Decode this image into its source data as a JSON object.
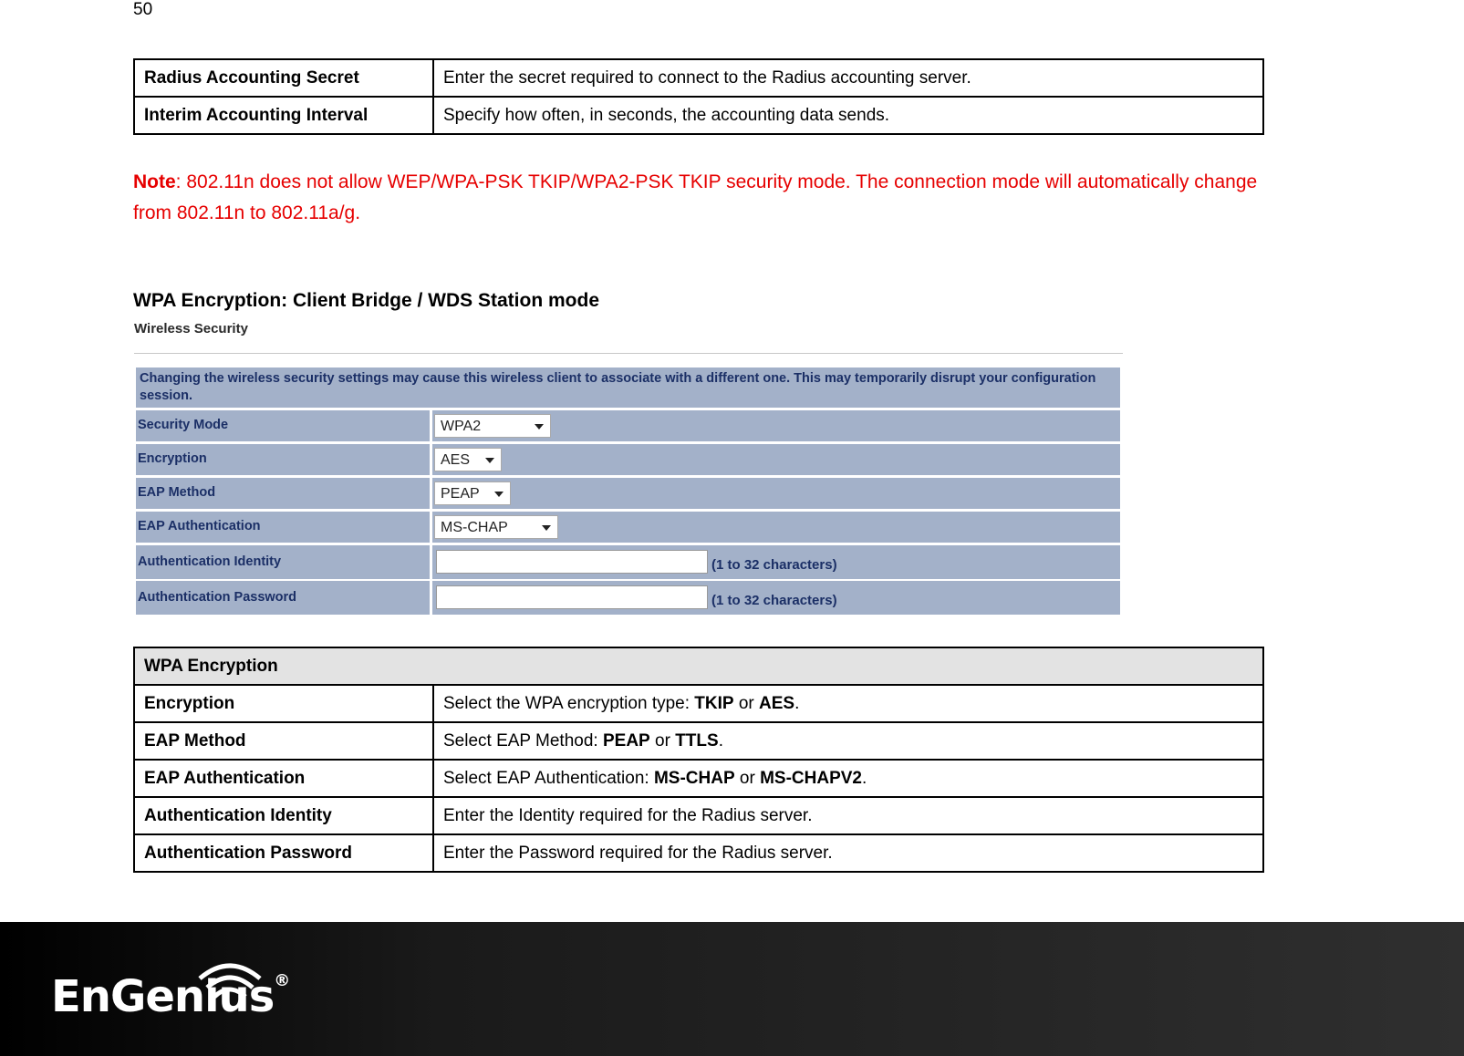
{
  "page_number": "50",
  "top_table": {
    "rows": [
      [
        "Radius Accounting Secret",
        "Enter the secret required to connect to the Radius accounting server."
      ],
      [
        "Interim Accounting Interval",
        "Specify how often, in seconds, the accounting data sends."
      ]
    ]
  },
  "note": {
    "label": "Note",
    "text": ":  802.11n does not allow WEP/WPA-PSK TKIP/WPA2-PSK TKIP security mode. The connection mode will automatically change from 802.11n to 802.11a/g."
  },
  "section_title": "WPA Encryption: Client Bridge / WDS Station mode",
  "screenshot": {
    "title": "Wireless Security",
    "warning": "Changing the wireless security settings may cause this wireless client to associate with a different one. This may temporarily disrupt your configuration session.",
    "rows": [
      {
        "label": "Security Mode",
        "value": "WPA2"
      },
      {
        "label": "Encryption",
        "value": "AES"
      },
      {
        "label": "EAP Method",
        "value": "PEAP"
      },
      {
        "label": "EAP Authentication",
        "value": "MS-CHAP"
      },
      {
        "label": "Authentication Identity",
        "hint": "(1 to 32 characters)"
      },
      {
        "label": "Authentication Password",
        "hint": "(1 to 32 characters)"
      }
    ]
  },
  "wpa_table": {
    "header": "WPA Encryption",
    "rows": [
      {
        "label": "Encryption",
        "description": [
          "Select the WPA encryption type: ",
          "TKIP",
          " or ",
          "AES",
          "."
        ]
      },
      {
        "label": "EAP Method",
        "description": [
          "Select EAP Method: ",
          "PEAP",
          " or ",
          "TTLS",
          "."
        ]
      },
      {
        "label": "EAP Authentication",
        "description": [
          "Select EAP Authentication: ",
          "MS-CHAP",
          " or ",
          "MS-CHAPV2",
          "."
        ]
      },
      {
        "label": "Authentication Identity",
        "description": [
          "Enter the Identity required for the Radius server."
        ]
      },
      {
        "label": "Authentication Password",
        "description": [
          "Enter the Password required for the Radius server."
        ]
      }
    ]
  },
  "footer": {
    "logo": "EnGenius",
    "mark": "®"
  }
}
